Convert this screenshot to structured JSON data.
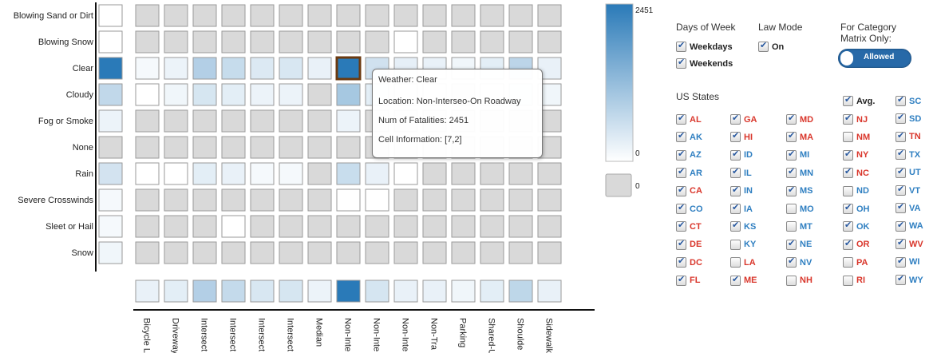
{
  "chart_data": {
    "type": "heatmap",
    "rows": [
      "Blowing Sand or Dirt",
      "Blowing Snow",
      "Clear",
      "Cloudy",
      "Fog or Smoke",
      "None",
      "Rain",
      "Severe Crosswinds",
      "Sleet or Hail",
      "Snow"
    ],
    "columns": [
      "Bicycle L",
      "Driveway",
      "Intersect",
      "Intersect",
      "Intersect",
      "Intersect",
      "Median",
      "Non-Inte",
      "Non-Inte",
      "Non-Inte",
      "Non-Tra",
      "Parking",
      "Shared-U",
      "Shoulde",
      "Sidewalk"
    ],
    "row_totals": [
      0,
      0,
      2451,
      260,
      30,
      null,
      140,
      10,
      10,
      20
    ],
    "column_totals": [
      40,
      60,
      380,
      240,
      110,
      120,
      30,
      2451,
      130,
      40,
      40,
      20,
      60,
      280,
      40
    ],
    "values": [
      [
        null,
        null,
        null,
        null,
        null,
        null,
        null,
        null,
        null,
        null,
        null,
        null,
        null,
        null,
        null
      ],
      [
        null,
        null,
        null,
        null,
        null,
        null,
        null,
        null,
        null,
        0,
        null,
        null,
        null,
        null,
        null
      ],
      [
        10,
        30,
        380,
        220,
        90,
        110,
        40,
        2451,
        160,
        50,
        40,
        20,
        60,
        300,
        40
      ],
      [
        0,
        20,
        120,
        60,
        30,
        30,
        null,
        500,
        60,
        10,
        10,
        null,
        10,
        60,
        20
      ],
      [
        null,
        null,
        null,
        null,
        null,
        null,
        null,
        30,
        null,
        null,
        null,
        null,
        null,
        null,
        null
      ],
      [
        null,
        null,
        null,
        null,
        null,
        null,
        null,
        null,
        null,
        null,
        null,
        null,
        null,
        null,
        null
      ],
      [
        0,
        0,
        60,
        40,
        10,
        10,
        null,
        210,
        40,
        0,
        null,
        null,
        null,
        null,
        null
      ],
      [
        null,
        null,
        null,
        null,
        null,
        null,
        null,
        0,
        0,
        null,
        null,
        null,
        null,
        null,
        null
      ],
      [
        null,
        null,
        null,
        0,
        null,
        null,
        null,
        null,
        null,
        null,
        null,
        null,
        null,
        null,
        null
      ],
      [
        null,
        null,
        null,
        null,
        null,
        null,
        null,
        null,
        null,
        null,
        null,
        null,
        null,
        null,
        null
      ]
    ],
    "color_scale": {
      "min": 0,
      "max": 2451,
      "low_color": "#ffffff",
      "high_color": "#2a7ab8",
      "null_color": "#d9d9d9",
      "null_label": "0"
    },
    "legend_labels": {
      "max": "2451",
      "min": "0",
      "null": "0"
    },
    "highlight_cell": {
      "row": 2,
      "col": 7
    }
  },
  "tooltip": {
    "weather": "Weather: Clear",
    "location": "Location: Non-Interseo-On Roadway",
    "fatalities": "Num of Fatalities: 2451",
    "cell": "Cell Information: [7,2]"
  },
  "controls": {
    "days_title": "Days of Week",
    "weekdays": {
      "label": "Weekdays",
      "checked": true
    },
    "weekends": {
      "label": "Weekends",
      "checked": true
    },
    "law_title": "Law Mode",
    "law_on": {
      "label": "On",
      "checked": true
    },
    "category_title_1": "For Category",
    "category_title_2": "Matrix Only:",
    "toggle_label": "Allowed",
    "states_title": "US States",
    "avg": {
      "label": "Avg.",
      "checked": true
    }
  },
  "states": [
    [
      [
        "AL",
        true,
        "red"
      ],
      [
        "AK",
        true,
        "blue"
      ],
      [
        "AZ",
        true,
        "blue"
      ],
      [
        "AR",
        true,
        "blue"
      ],
      [
        "CA",
        true,
        "red"
      ],
      [
        "CO",
        true,
        "blue"
      ],
      [
        "CT",
        true,
        "red"
      ],
      [
        "DE",
        true,
        "red"
      ],
      [
        "DC",
        true,
        "red"
      ],
      [
        "FL",
        true,
        "red"
      ]
    ],
    [
      [
        "GA",
        true,
        "red"
      ],
      [
        "HI",
        true,
        "red"
      ],
      [
        "ID",
        true,
        "blue"
      ],
      [
        "IL",
        true,
        "blue"
      ],
      [
        "IN",
        true,
        "blue"
      ],
      [
        "IA",
        true,
        "blue"
      ],
      [
        "KS",
        true,
        "blue"
      ],
      [
        "KY",
        false,
        "blue"
      ],
      [
        "LA",
        false,
        "red"
      ],
      [
        "ME",
        true,
        "red"
      ]
    ],
    [
      [
        "MD",
        true,
        "red"
      ],
      [
        "MA",
        true,
        "red"
      ],
      [
        "MI",
        true,
        "blue"
      ],
      [
        "MN",
        true,
        "blue"
      ],
      [
        "MS",
        true,
        "blue"
      ],
      [
        "MO",
        false,
        "blue"
      ],
      [
        "MT",
        false,
        "blue"
      ],
      [
        "NE",
        true,
        "blue"
      ],
      [
        "NV",
        true,
        "blue"
      ],
      [
        "NH",
        false,
        "red"
      ]
    ],
    [
      [
        "NJ",
        true,
        "red"
      ],
      [
        "NM",
        false,
        "red"
      ],
      [
        "NY",
        true,
        "red"
      ],
      [
        "NC",
        true,
        "red"
      ],
      [
        "ND",
        false,
        "blue"
      ],
      [
        "OH",
        true,
        "blue"
      ],
      [
        "OK",
        true,
        "blue"
      ],
      [
        "OR",
        true,
        "red"
      ],
      [
        "PA",
        false,
        "red"
      ],
      [
        "RI",
        false,
        "red"
      ]
    ],
    [
      [
        "SC",
        true,
        "blue"
      ],
      [
        "SD",
        true,
        "blue"
      ],
      [
        "TN",
        true,
        "red"
      ],
      [
        "TX",
        true,
        "blue"
      ],
      [
        "UT",
        true,
        "blue"
      ],
      [
        "VT",
        true,
        "blue"
      ],
      [
        "VA",
        true,
        "blue"
      ],
      [
        "WA",
        true,
        "blue"
      ],
      [
        "WV",
        true,
        "red"
      ],
      [
        "WI",
        true,
        "blue"
      ],
      [
        "WY",
        true,
        "blue"
      ]
    ]
  ]
}
